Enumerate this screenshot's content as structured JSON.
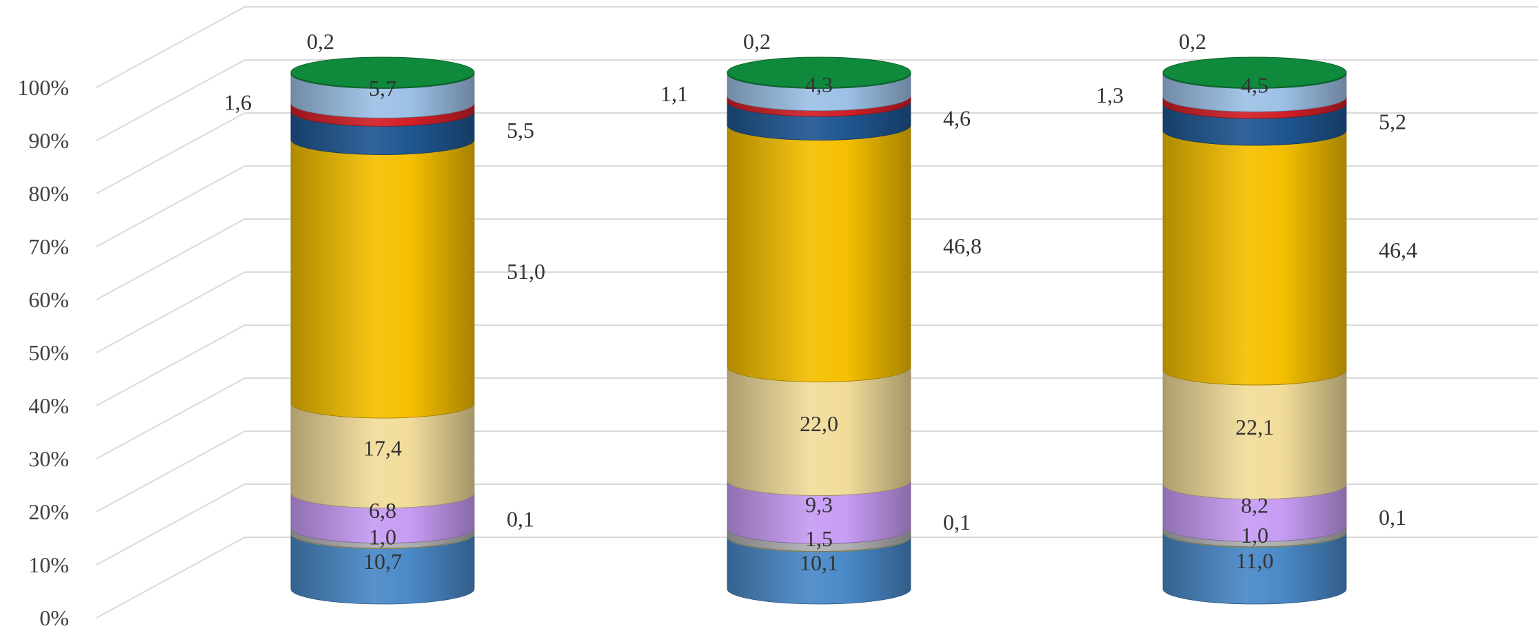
{
  "chart_data": {
    "type": "bar",
    "stacked": true,
    "percent": true,
    "three_d": true,
    "style": "cylinder",
    "title": "",
    "xlabel": "",
    "ylabel": "",
    "categories": [
      "",
      "",
      ""
    ],
    "ylim": [
      0,
      100
    ],
    "y_ticks": [
      "0%",
      "10%",
      "20%",
      "30%",
      "40%",
      "50%",
      "60%",
      "70%",
      "80%",
      "90%",
      "100%"
    ],
    "grid": true,
    "legend": "none",
    "series": [
      {
        "values": [
          10.7,
          10.1,
          11.0
        ],
        "labels": [
          "10,7",
          "10,1",
          "11,0"
        ],
        "color": "#4a89c8",
        "label_position": "inside"
      },
      {
        "values": [
          0.1,
          0.1,
          0.1
        ],
        "labels": [
          "0,1",
          "0,1",
          "0,1"
        ],
        "color": "#e2e05c",
        "label_position": "right"
      },
      {
        "values": [
          1.0,
          1.5,
          1.0
        ],
        "labels": [
          "1,0",
          "1,5",
          "1,0"
        ],
        "color": "#b0b0b0",
        "label_position": "inside"
      },
      {
        "values": [
          6.8,
          9.3,
          8.2
        ],
        "labels": [
          "6,8",
          "9,3",
          "8,2"
        ],
        "color": "#c79cf4",
        "label_position": "inside"
      },
      {
        "values": [
          17.4,
          22.0,
          22.1
        ],
        "labels": [
          "17,4",
          "22,0",
          "22,1"
        ],
        "color": "#f1dc9a",
        "label_position": "inside"
      },
      {
        "values": [
          51.0,
          46.8,
          46.4
        ],
        "labels": [
          "51,0",
          "46,8",
          "46,4"
        ],
        "color": "#f5bf00",
        "label_position": "right"
      },
      {
        "values": [
          5.5,
          4.6,
          5.2
        ],
        "labels": [
          "5,5",
          "4,6",
          "5,2"
        ],
        "color": "#1f5792",
        "label_position": "right"
      },
      {
        "values": [
          1.6,
          1.1,
          1.3
        ],
        "labels": [
          "1,6",
          "1,1",
          "1,3"
        ],
        "color": "#d21f27",
        "label_position": "left"
      },
      {
        "values": [
          5.7,
          4.3,
          4.5
        ],
        "labels": [
          "5,7",
          "4,3",
          "4,5"
        ],
        "color": "#9dc1e6",
        "label_position": "inside"
      },
      {
        "values": [
          0.2,
          0.2,
          0.2
        ],
        "labels": [
          "0,2",
          "0,2",
          "0,2"
        ],
        "color": "#0f8a3c",
        "label_position": "above"
      }
    ]
  }
}
